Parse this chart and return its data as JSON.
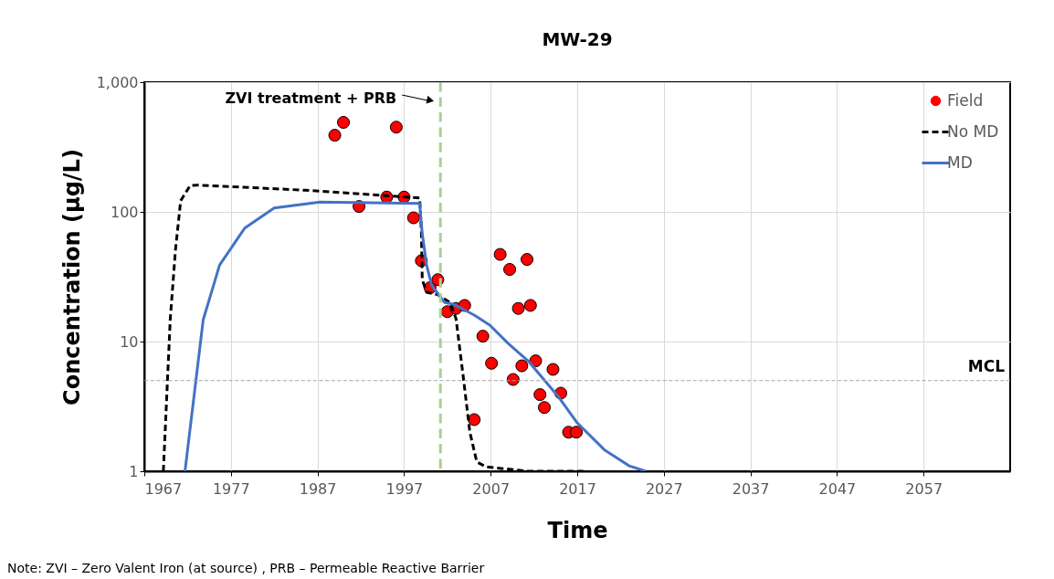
{
  "chart_data": {
    "type": "scatter",
    "title": "MW-29",
    "xlabel": "Time",
    "ylabel": "Concentration (µg/L)",
    "xlim": [
      1967,
      2067
    ],
    "xticks": [
      1967,
      1977,
      1987,
      1997,
      2007,
      2017,
      2027,
      2037,
      2047,
      2057
    ],
    "ylim": [
      1,
      1000
    ],
    "yticks": [
      1,
      10,
      100,
      {
        "value": 1000,
        "label": "1,000"
      }
    ],
    "log": "y",
    "grid": true,
    "legend": "top right",
    "series": [
      {
        "name": "Field",
        "marker": "circle",
        "color": "#ff0000",
        "x": [
          1989.0,
          1990.0,
          1996.1,
          1991.8,
          1995.0,
          1997.0,
          1998.1,
          1999.0,
          2000.0,
          2000.9,
          2002.0,
          2003.0,
          2004.0,
          2006.1,
          2007.1,
          2005.1,
          2008.1,
          2009.2,
          2011.2,
          2010.2,
          2011.6,
          2009.6,
          2010.6,
          2012.2,
          2014.2,
          2012.7,
          2013.2,
          2015.1,
          2016.0,
          2016.9
        ],
        "values": [
          390,
          490,
          450,
          110,
          130,
          130,
          90,
          42,
          26,
          30,
          17,
          18,
          19,
          11,
          6.8,
          2.5,
          47,
          36,
          43,
          18,
          19,
          5.1,
          6.5,
          7.1,
          6.1,
          3.9,
          3.1,
          4.0,
          2.0,
          2.0
        ]
      },
      {
        "name": "No MD",
        "type": "line",
        "line_style": "dashed",
        "color": "#000000",
        "x": [
          1969.2,
          1970.0,
          1970.6,
          1971.2,
          1972.3,
          1973.1,
          1985.5,
          1998.8,
          1999.0,
          1999.1,
          1999.6,
          2000.9,
          2002.3,
          2003.0,
          2003.8,
          2004.6,
          2005.4,
          2006.5,
          2011.4,
          2017.7
        ],
        "values": [
          1,
          15,
          51,
          122,
          160,
          161,
          147,
          128,
          71,
          30,
          24,
          23,
          20,
          15,
          5.6,
          2.0,
          1.18,
          1.08,
          1.0,
          1.0
        ]
      },
      {
        "name": "MD",
        "type": "line",
        "line_style": "solid",
        "color": "#4472c4",
        "x": [
          1971.7,
          1973.8,
          1975.7,
          1978.6,
          1982.0,
          1987.3,
          1998.8,
          1999.1,
          1999.6,
          2000.2,
          2001.7,
          2002.7,
          2005.1,
          2006.9,
          2009.0,
          2011.4,
          2014.9,
          2017.0,
          2020.2,
          2023.0,
          2024.9
        ],
        "values": [
          1,
          14.7,
          39,
          75,
          107,
          119,
          116,
          68,
          39,
          27,
          20,
          19.4,
          16,
          13.4,
          9.7,
          7.0,
          3.7,
          2.36,
          1.45,
          1.1,
          1.0
        ]
      }
    ],
    "ref_lines": [
      {
        "axis": "x",
        "value": 2001.2,
        "label": "ZVI treatment + PRB",
        "color": "#a9d18e",
        "line_style": "dashed"
      },
      {
        "axis": "y",
        "value": 5,
        "label": "MCL",
        "color": "#a6a6a6",
        "line_style": "dashed"
      }
    ],
    "annotations": [
      "Note: ZVI – Zero Valent Iron (at source) , PRB – Permeable Reactive Barrier"
    ]
  }
}
